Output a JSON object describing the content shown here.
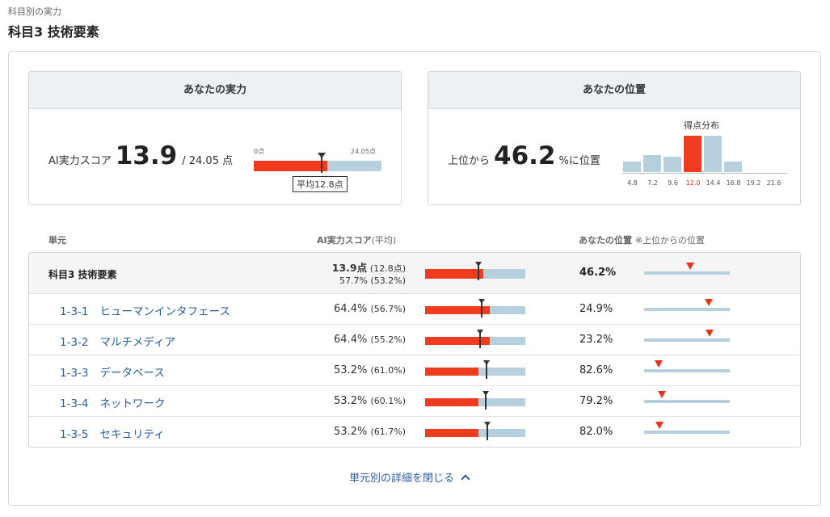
{
  "breadcrumb": "科目別の実力",
  "page_title": "科目3 技術要素",
  "ability_panel": {
    "title": "あなたの実力",
    "score_label": "AI実力スコア",
    "score": "13.9",
    "score_max_text": "/ 24.05 点",
    "axis_min": "0点",
    "axis_max": "24.05点",
    "average_label": "平均12.8点",
    "score_value": 13.9,
    "max_value": 24.05,
    "average_value": 12.8
  },
  "position_panel": {
    "title": "あなたの位置",
    "prefix": "上位から",
    "percent": "46.2",
    "suffix": "%に位置",
    "histogram_title": "得点分布",
    "bins": [
      "4.8",
      "7.2",
      "9.6",
      "12.0",
      "14.4",
      "16.8",
      "19.2",
      "21.6"
    ],
    "relative_heights": [
      0.33,
      0.48,
      0.44,
      1.0,
      1.0,
      0.31,
      0,
      0
    ],
    "highlight_bin": 3
  },
  "table": {
    "headers": {
      "unit": "単元",
      "score": "AI実力スコア",
      "score_sub": "(平均)",
      "rank": "あなたの位置",
      "rank_sub": "※上位からの位置"
    },
    "total": {
      "name": "科目3 技術要素",
      "score": "13.9点",
      "score_avg": "(12.8点)",
      "percent": "57.7%",
      "percent_avg": "(53.2%)",
      "rank": "46.2%",
      "fill": 0.577,
      "avg": 0.532,
      "rank_value": 0.462
    },
    "rows": [
      {
        "code": "1-3-1",
        "name": "ヒューマンインタフェース",
        "percent": "64.4%",
        "avg": "(56.7%)",
        "rank": "24.9%",
        "fill": 0.644,
        "avg_value": 0.567,
        "rank_value": 0.249
      },
      {
        "code": "1-3-2",
        "name": "マルチメディア",
        "percent": "64.4%",
        "avg": "(55.2%)",
        "rank": "23.2%",
        "fill": 0.644,
        "avg_value": 0.552,
        "rank_value": 0.232
      },
      {
        "code": "1-3-3",
        "name": "データベース",
        "percent": "53.2%",
        "avg": "(61.0%)",
        "rank": "82.6%",
        "fill": 0.532,
        "avg_value": 0.61,
        "rank_value": 0.826
      },
      {
        "code": "1-3-4",
        "name": "ネットワーク",
        "percent": "53.2%",
        "avg": "(60.1%)",
        "rank": "79.2%",
        "fill": 0.532,
        "avg_value": 0.601,
        "rank_value": 0.792
      },
      {
        "code": "1-3-5",
        "name": "セキュリティ",
        "percent": "53.2%",
        "avg": "(61.7%)",
        "rank": "82.0%",
        "fill": 0.532,
        "avg_value": 0.617,
        "rank_value": 0.82
      }
    ]
  },
  "toggle_label": "単元別の詳細を閉じる",
  "colors": {
    "accent_red": "#f03c1e",
    "bar_blue": "#b7d0de",
    "link_blue": "#2a5d9c"
  }
}
